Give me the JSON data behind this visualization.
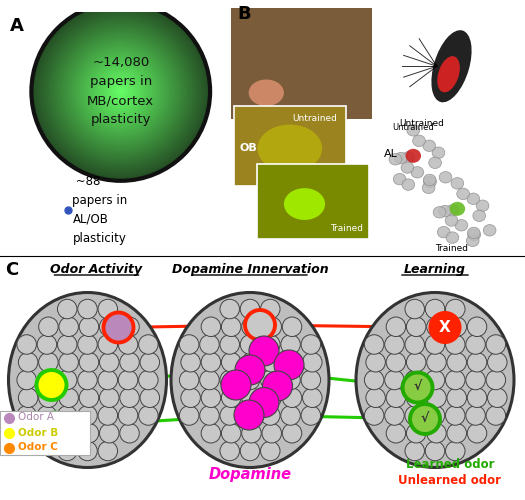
{
  "big_circle_text": "~14,080\npapers in\nMB/cortex\nplasticity",
  "small_dot_text": " ~88\npapers in\nAL/OB\nplasticity",
  "panel_c_title1": "Odor Activity",
  "panel_c_title2": "Dopamine Innervation",
  "panel_c_title3": "Learning",
  "dopamine_label": "Dopamine",
  "learned_label": "Learned odor",
  "unlearned_label": "Unlearned odor",
  "odorA_label": "Odor A",
  "odorB_label": "Odor B",
  "odorC_label": "Odor C",
  "magenta": "#FF00CC",
  "red": "#FF2200",
  "green_line": "#22CC00",
  "yellow": "#FFFF00",
  "orange": "#FF8800",
  "purple_fill": "#BB88BB",
  "gray_glom_face": "#C8C8C8",
  "gray_glom_edge": "#444444",
  "big_circle_edge": "#111111",
  "bg_color": "#FFFFFF",
  "learned_green_fill": "#88CC44",
  "learned_green_edge": "#22AA00"
}
